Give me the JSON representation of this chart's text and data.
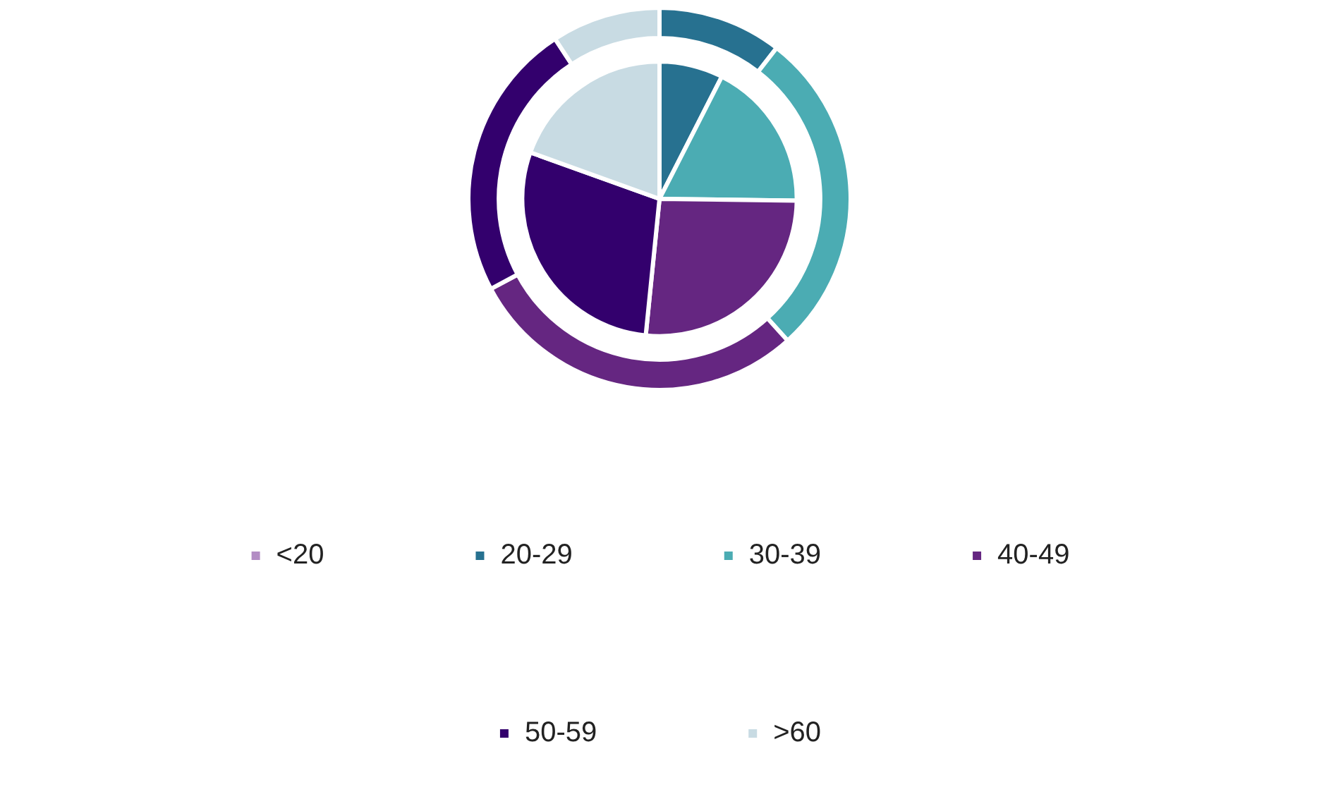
{
  "chart_data": {
    "type": "pie",
    "categories": [
      "<20",
      "20-29",
      "30-39",
      "40-49",
      "50-59",
      ">60"
    ],
    "colors": [
      "#b38dc4",
      "#277190",
      "#4bacb3",
      "#652681",
      "#33006d",
      "#c8dbe3"
    ],
    "series": [
      {
        "values": [
          0,
          10.5,
          27.8,
          28.9,
          23.6,
          9.2
        ]
      },
      {
        "values": [
          0,
          7.5,
          17.7,
          26.4,
          28.9,
          19.5
        ]
      }
    ],
    "legend": "bottom"
  }
}
